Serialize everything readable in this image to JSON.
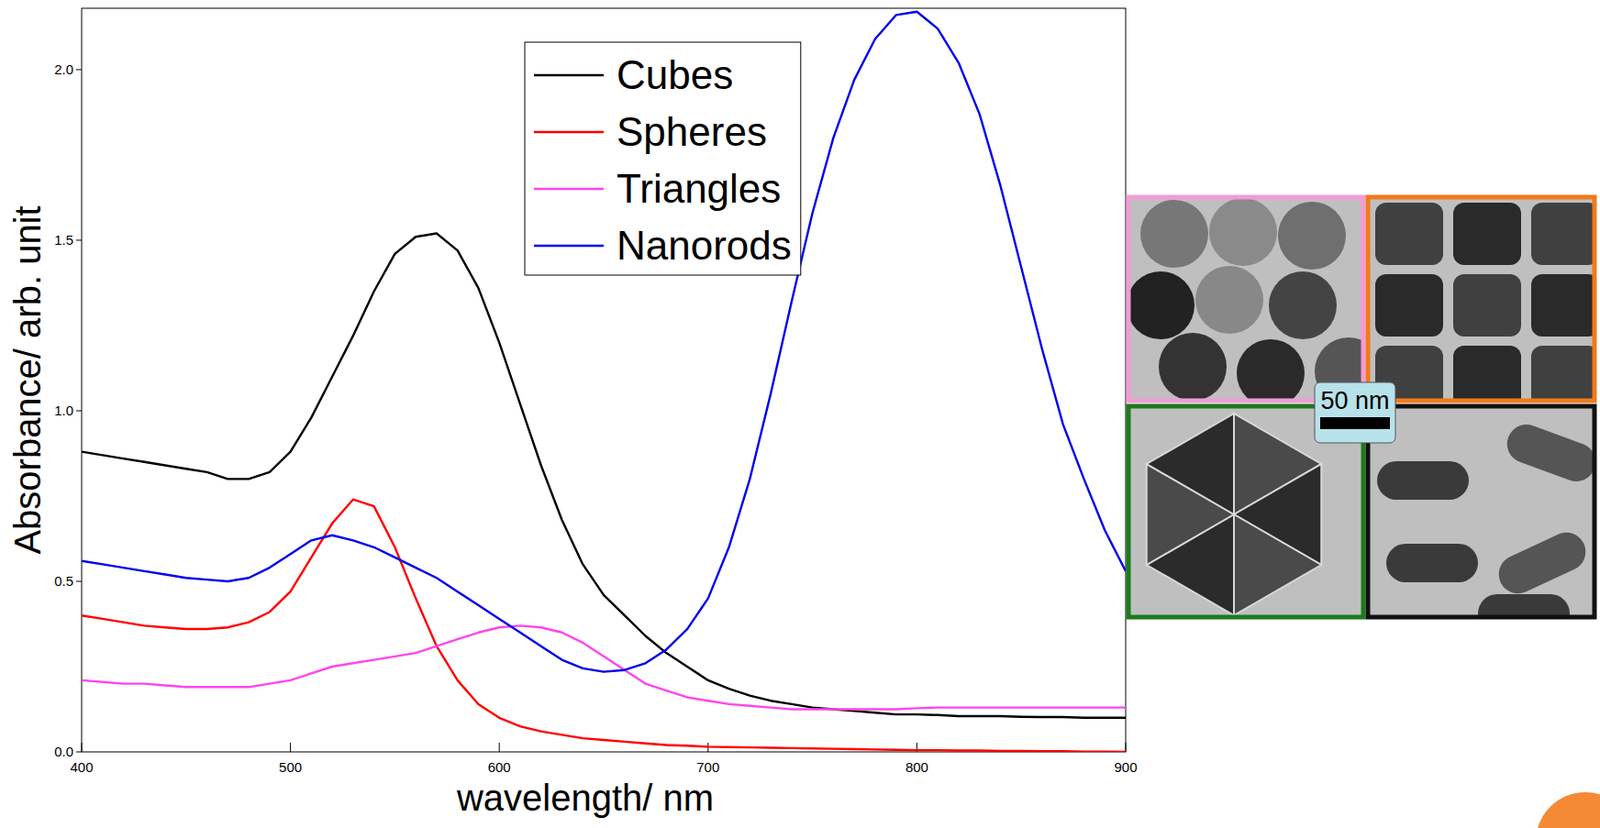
{
  "chart_data": {
    "type": "line",
    "xlabel": "wavelength/ nm",
    "ylabel": "Absorbance/ arb. unit",
    "x": [
      400,
      410,
      420,
      430,
      440,
      450,
      460,
      470,
      480,
      490,
      500,
      510,
      520,
      530,
      540,
      550,
      560,
      570,
      580,
      590,
      600,
      610,
      620,
      630,
      640,
      650,
      660,
      670,
      680,
      690,
      700,
      710,
      720,
      730,
      740,
      750,
      760,
      770,
      780,
      790,
      800,
      810,
      820,
      830,
      840,
      850,
      860,
      870,
      880,
      890,
      900
    ],
    "series": [
      {
        "name": "Cubes",
        "color": "#000000",
        "values": [
          0.88,
          0.87,
          0.86,
          0.85,
          0.84,
          0.83,
          0.82,
          0.8,
          0.8,
          0.82,
          0.88,
          0.98,
          1.1,
          1.22,
          1.35,
          1.46,
          1.51,
          1.52,
          1.47,
          1.36,
          1.2,
          1.02,
          0.84,
          0.68,
          0.55,
          0.46,
          0.4,
          0.34,
          0.29,
          0.25,
          0.21,
          0.185,
          0.165,
          0.15,
          0.14,
          0.13,
          0.125,
          0.12,
          0.115,
          0.11,
          0.11,
          0.108,
          0.105,
          0.105,
          0.105,
          0.103,
          0.102,
          0.102,
          0.1,
          0.1,
          0.1
        ]
      },
      {
        "name": "Spheres",
        "color": "#ff0000",
        "values": [
          0.4,
          0.39,
          0.38,
          0.37,
          0.365,
          0.36,
          0.36,
          0.365,
          0.38,
          0.41,
          0.47,
          0.57,
          0.67,
          0.74,
          0.72,
          0.6,
          0.45,
          0.31,
          0.21,
          0.14,
          0.1,
          0.075,
          0.06,
          0.05,
          0.04,
          0.035,
          0.03,
          0.025,
          0.02,
          0.018,
          0.015,
          0.014,
          0.013,
          0.012,
          0.011,
          0.01,
          0.009,
          0.008,
          0.007,
          0.006,
          0.005,
          0.005,
          0.004,
          0.004,
          0.003,
          0.003,
          0.002,
          0.002,
          0.001,
          0.001,
          0
        ]
      },
      {
        "name": "Triangles",
        "color": "#ff44ee",
        "values": [
          0.21,
          0.205,
          0.2,
          0.2,
          0.195,
          0.19,
          0.19,
          0.19,
          0.19,
          0.2,
          0.21,
          0.23,
          0.25,
          0.26,
          0.27,
          0.28,
          0.29,
          0.31,
          0.33,
          0.35,
          0.365,
          0.37,
          0.365,
          0.35,
          0.32,
          0.28,
          0.24,
          0.2,
          0.18,
          0.16,
          0.15,
          0.14,
          0.135,
          0.13,
          0.125,
          0.125,
          0.125,
          0.125,
          0.125,
          0.125,
          0.128,
          0.13,
          0.13,
          0.13,
          0.13,
          0.13,
          0.13,
          0.13,
          0.13,
          0.13,
          0.13
        ]
      },
      {
        "name": "Nanorods",
        "color": "#0000ee",
        "values": [
          0.56,
          0.55,
          0.54,
          0.53,
          0.52,
          0.51,
          0.505,
          0.5,
          0.51,
          0.54,
          0.58,
          0.62,
          0.635,
          0.62,
          0.6,
          0.57,
          0.54,
          0.51,
          0.47,
          0.43,
          0.39,
          0.35,
          0.31,
          0.27,
          0.245,
          0.235,
          0.24,
          0.26,
          0.3,
          0.36,
          0.45,
          0.6,
          0.8,
          1.05,
          1.32,
          1.58,
          1.8,
          1.97,
          2.09,
          2.16,
          2.17,
          2.12,
          2.02,
          1.87,
          1.66,
          1.42,
          1.18,
          0.96,
          0.8,
          0.65,
          0.53
        ]
      }
    ],
    "xlim": [
      400,
      900
    ],
    "xticks": [
      400,
      500,
      600,
      700,
      800,
      900
    ],
    "ylim": [
      0,
      2.18
    ],
    "yticks": [
      {
        "value": 0,
        "label": "0.0"
      },
      0.5,
      {
        "value": 1,
        "label": "1.0"
      },
      1.5,
      {
        "value": 2,
        "label": "2.0"
      }
    ],
    "grid": false,
    "legend": "upper center"
  },
  "micrographs": {
    "scale_bar_label": "50 nm"
  }
}
